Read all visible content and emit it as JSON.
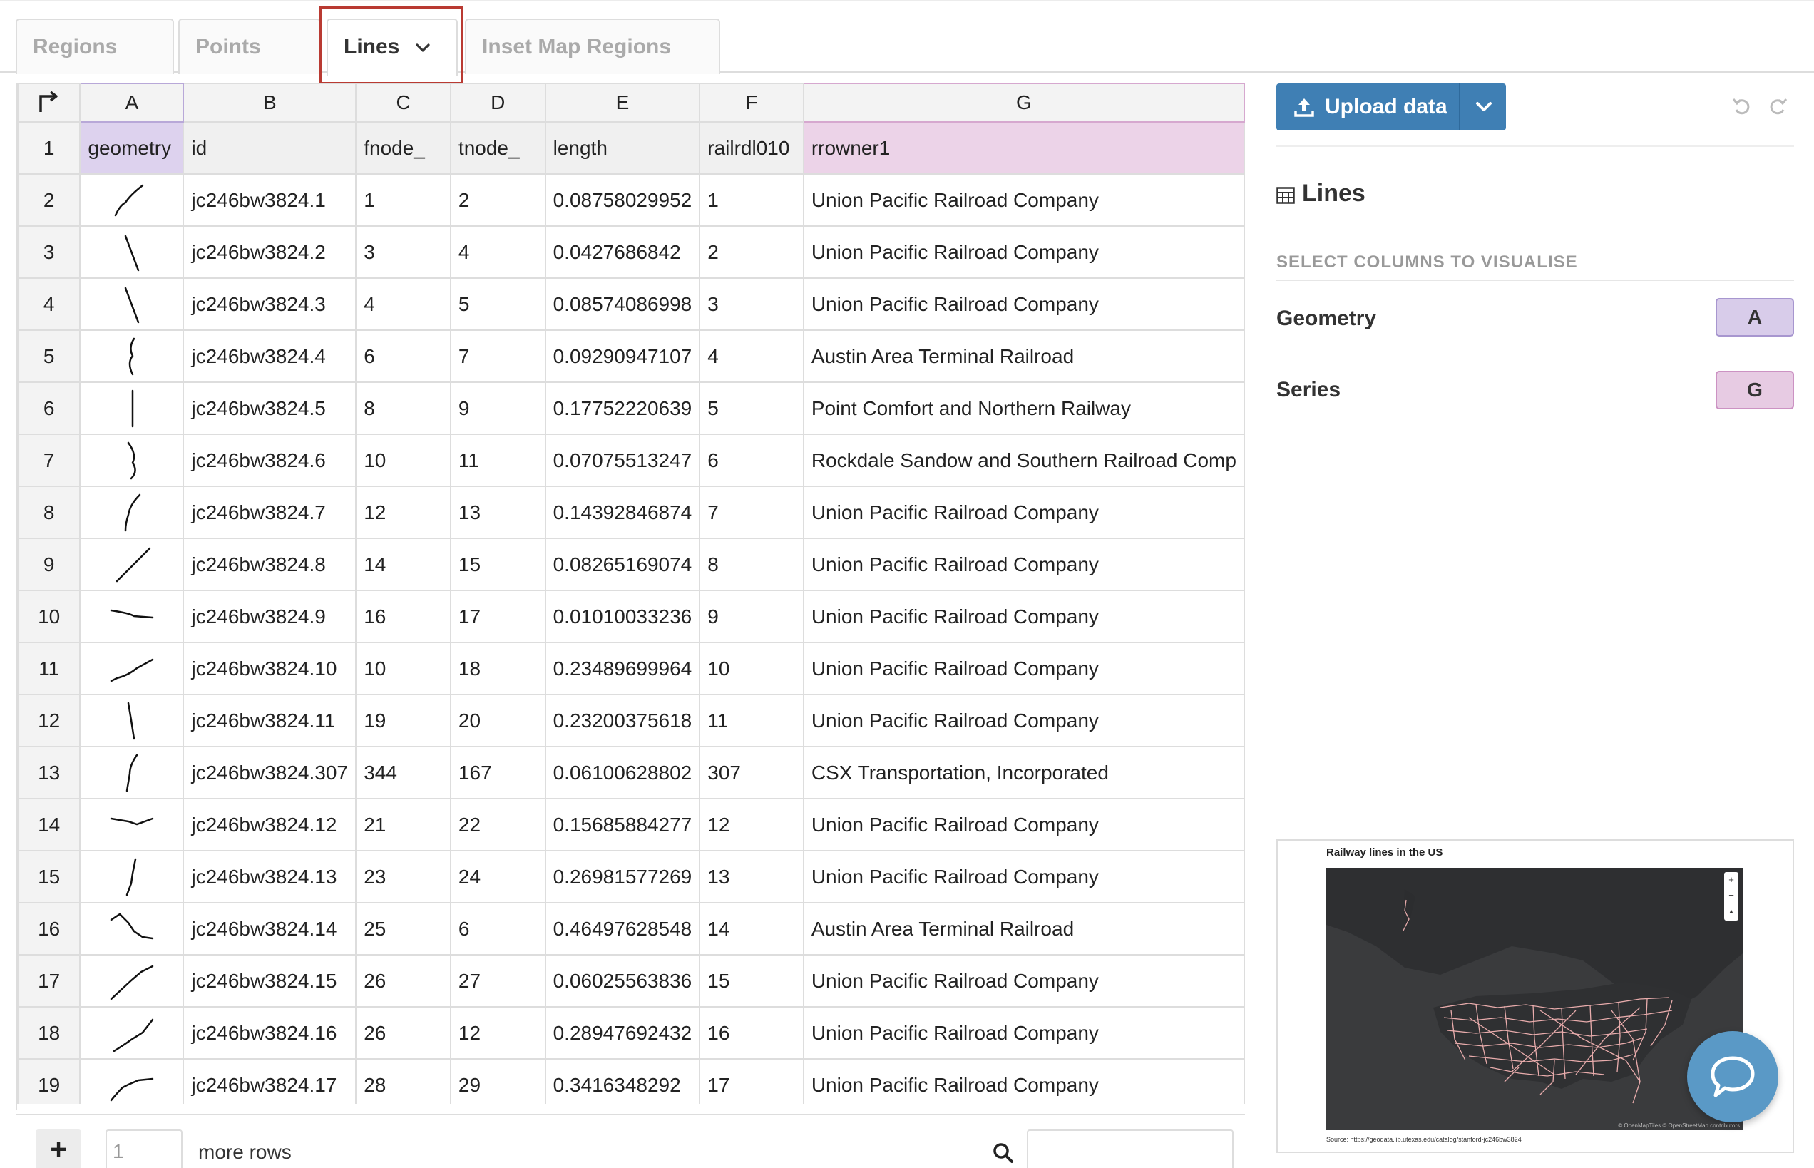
{
  "tabs": [
    {
      "label": "Regions",
      "active": false
    },
    {
      "label": "Points",
      "active": false
    },
    {
      "label": "Lines",
      "active": true
    },
    {
      "label": "Inset Map Regions",
      "active": false
    }
  ],
  "sheet": {
    "column_letters": [
      "A",
      "B",
      "C",
      "D",
      "E",
      "F",
      "G"
    ],
    "header_row_number": "1",
    "headers": [
      "geometry",
      "id",
      "fnode_",
      "tnode_",
      "length",
      "railrdl010",
      "rrowner1"
    ],
    "rows": [
      {
        "n": "2",
        "id": "jc246bw3824.1",
        "fnode": "1",
        "tnode": "2",
        "length": "0.08758029952",
        "railrdl010": "1",
        "owner": "Union Pacific Railroad Company"
      },
      {
        "n": "3",
        "id": "jc246bw3824.2",
        "fnode": "3",
        "tnode": "4",
        "length": "0.0427686842",
        "railrdl010": "2",
        "owner": "Union Pacific Railroad Company"
      },
      {
        "n": "4",
        "id": "jc246bw3824.3",
        "fnode": "4",
        "tnode": "5",
        "length": "0.08574086998",
        "railrdl010": "3",
        "owner": "Union Pacific Railroad Company"
      },
      {
        "n": "5",
        "id": "jc246bw3824.4",
        "fnode": "6",
        "tnode": "7",
        "length": "0.09290947107",
        "railrdl010": "4",
        "owner": "Austin Area Terminal Railroad"
      },
      {
        "n": "6",
        "id": "jc246bw3824.5",
        "fnode": "8",
        "tnode": "9",
        "length": "0.17752220639",
        "railrdl010": "5",
        "owner": "Point Comfort and Northern Railway"
      },
      {
        "n": "7",
        "id": "jc246bw3824.6",
        "fnode": "10",
        "tnode": "11",
        "length": "0.07075513247",
        "railrdl010": "6",
        "owner": "Rockdale Sandow and Southern Railroad Comp"
      },
      {
        "n": "8",
        "id": "jc246bw3824.7",
        "fnode": "12",
        "tnode": "13",
        "length": "0.14392846874",
        "railrdl010": "7",
        "owner": "Union Pacific Railroad Company"
      },
      {
        "n": "9",
        "id": "jc246bw3824.8",
        "fnode": "14",
        "tnode": "15",
        "length": "0.08265169074",
        "railrdl010": "8",
        "owner": "Union Pacific Railroad Company"
      },
      {
        "n": "10",
        "id": "jc246bw3824.9",
        "fnode": "16",
        "tnode": "17",
        "length": "0.01010033236",
        "railrdl010": "9",
        "owner": "Union Pacific Railroad Company"
      },
      {
        "n": "11",
        "id": "jc246bw3824.10",
        "fnode": "10",
        "tnode": "18",
        "length": "0.23489699964",
        "railrdl010": "10",
        "owner": "Union Pacific Railroad Company"
      },
      {
        "n": "12",
        "id": "jc246bw3824.11",
        "fnode": "19",
        "tnode": "20",
        "length": "0.23200375618",
        "railrdl010": "11",
        "owner": "Union Pacific Railroad Company"
      },
      {
        "n": "13",
        "id": "jc246bw3824.307",
        "fnode": "344",
        "tnode": "167",
        "length": "0.06100628802",
        "railrdl010": "307",
        "owner": "CSX Transportation, Incorporated"
      },
      {
        "n": "14",
        "id": "jc246bw3824.12",
        "fnode": "21",
        "tnode": "22",
        "length": "0.15685884277",
        "railrdl010": "12",
        "owner": "Union Pacific Railroad Company"
      },
      {
        "n": "15",
        "id": "jc246bw3824.13",
        "fnode": "23",
        "tnode": "24",
        "length": "0.26981577269",
        "railrdl010": "13",
        "owner": "Union Pacific Railroad Company"
      },
      {
        "n": "16",
        "id": "jc246bw3824.14",
        "fnode": "25",
        "tnode": "6",
        "length": "0.46497628548",
        "railrdl010": "14",
        "owner": "Austin Area Terminal Railroad"
      },
      {
        "n": "17",
        "id": "jc246bw3824.15",
        "fnode": "26",
        "tnode": "27",
        "length": "0.06025563836",
        "railrdl010": "15",
        "owner": "Union Pacific Railroad Company"
      },
      {
        "n": "18",
        "id": "jc246bw3824.16",
        "fnode": "26",
        "tnode": "12",
        "length": "0.28947692432",
        "railrdl010": "16",
        "owner": "Union Pacific Railroad Company"
      },
      {
        "n": "19",
        "id": "jc246bw3824.17",
        "fnode": "28",
        "tnode": "29",
        "length": "0.3416348292",
        "railrdl010": "17",
        "owner": "Union Pacific Railroad Company"
      }
    ]
  },
  "bottom": {
    "rows_value": "1",
    "more_rows_label": "more rows"
  },
  "panel": {
    "upload_label": "Upload data",
    "title": "Lines",
    "section_label": "SELECT COLUMNS TO VISUALISE",
    "fields": [
      {
        "label": "Geometry",
        "column": "A"
      },
      {
        "label": "Series",
        "column": "G"
      }
    ]
  },
  "preview": {
    "title": "Railway lines in the US",
    "source_prefix": "Source: ",
    "source_link": "https://geodata.lib.utexas.edu/catalog/stanford-jc246bw3824",
    "attribution": "© OpenMapTiles © OpenStreetMap contributors",
    "zoom_in": "+",
    "zoom_out": "−",
    "reset": "▲"
  },
  "colors": {
    "accent": "#3f7fb4",
    "geometry_column": "#d8ccea",
    "series_column": "#e7cbe3",
    "tab_highlight": "#b93a32",
    "railway_lines": "#f3b3b3",
    "map_background": "#3a3b3d"
  },
  "icons": {
    "corner": "corner-arrow-icon",
    "tab_dropdown": "chevron-down-icon",
    "upload": "upload-icon",
    "undo": "undo-icon",
    "redo": "redo-icon",
    "table": "table-icon",
    "search": "search-icon",
    "chat": "chat-icon"
  }
}
